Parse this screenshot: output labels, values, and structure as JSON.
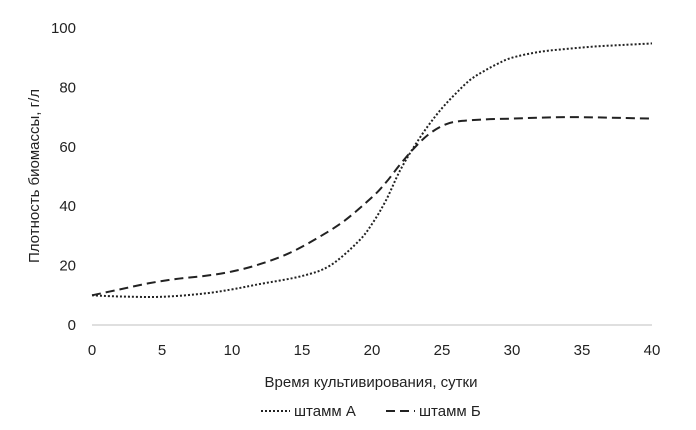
{
  "chart_data": {
    "type": "line",
    "title": "",
    "xlabel": "Время культивирования, сутки",
    "ylabel": "Плотность биомассы, г/л",
    "xlim": [
      0,
      40
    ],
    "ylim": [
      0,
      100
    ],
    "xticks": [
      0,
      5,
      10,
      15,
      20,
      25,
      30,
      35,
      40
    ],
    "yticks": [
      0,
      20,
      40,
      60,
      80,
      100
    ],
    "grid": false,
    "legend_position": "bottom",
    "series": [
      {
        "name": "штамм А",
        "style": "dotted",
        "color": "#222222",
        "points": [
          [
            0,
            10
          ],
          [
            2,
            9.6
          ],
          [
            5,
            9.5
          ],
          [
            8,
            10.6
          ],
          [
            10,
            12
          ],
          [
            12,
            13.8
          ],
          [
            15,
            16.5
          ],
          [
            17,
            20
          ],
          [
            19,
            28
          ],
          [
            20,
            34
          ],
          [
            21,
            42
          ],
          [
            22,
            52
          ],
          [
            23,
            60
          ],
          [
            24,
            67
          ],
          [
            25,
            73
          ],
          [
            26,
            78
          ],
          [
            27,
            82.5
          ],
          [
            28,
            85.5
          ],
          [
            29,
            88
          ],
          [
            30,
            90
          ],
          [
            32,
            92
          ],
          [
            34,
            93
          ],
          [
            36,
            93.8
          ],
          [
            38,
            94.3
          ],
          [
            40,
            94.8
          ]
        ]
      },
      {
        "name": "штамм Б",
        "style": "dashed",
        "color": "#222222",
        "points": [
          [
            0,
            10
          ],
          [
            2,
            12
          ],
          [
            4,
            14
          ],
          [
            6,
            15.5
          ],
          [
            8,
            16.5
          ],
          [
            10,
            18
          ],
          [
            12,
            20.5
          ],
          [
            14,
            24
          ],
          [
            16,
            29
          ],
          [
            18,
            35
          ],
          [
            20,
            43
          ],
          [
            21,
            48
          ],
          [
            22,
            54
          ],
          [
            23,
            59.5
          ],
          [
            24,
            64
          ],
          [
            25,
            67
          ],
          [
            26,
            68.5
          ],
          [
            28,
            69.2
          ],
          [
            30,
            69.5
          ],
          [
            32,
            69.8
          ],
          [
            34,
            70
          ],
          [
            36,
            69.9
          ],
          [
            38,
            69.7
          ],
          [
            40,
            69.5
          ]
        ]
      }
    ]
  }
}
